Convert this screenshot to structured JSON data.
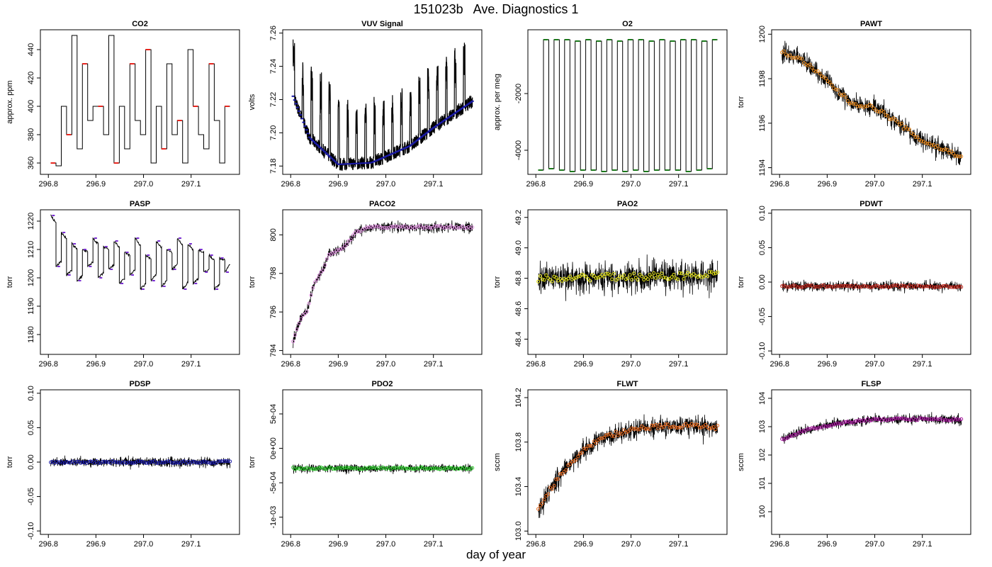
{
  "page": {
    "title": "151023b   Ave. Diagnostics 1",
    "x_caption": "day of year"
  },
  "chart_data": [
    {
      "type": "line",
      "title": "CO2",
      "ylabel": "approx. ppm",
      "xlim": [
        296.8,
        297.185
      ],
      "ylim": [
        352,
        454
      ],
      "xticks": [
        296.8,
        296.9,
        297.0,
        297.1
      ],
      "xtick_labels": [
        "296.8",
        "296.9",
        "297.0",
        "297.1"
      ],
      "yticks": [
        360,
        380,
        400,
        420,
        440
      ],
      "ytick_labels": [
        "360",
        "380",
        "400",
        "420",
        "440"
      ],
      "pattern": "step",
      "levels": [
        360,
        358,
        400,
        380,
        450,
        370,
        430,
        390,
        400,
        400,
        380,
        450,
        360,
        400,
        370,
        430,
        390,
        380,
        440,
        360,
        400,
        370,
        430,
        380,
        390,
        360,
        440,
        400,
        380,
        370,
        430,
        390,
        360,
        400
      ],
      "band": 0.6,
      "points": 0,
      "point_color": "#e8261f",
      "point_every": 3
    },
    {
      "type": "line",
      "title": "VUV Signal",
      "ylabel": "volts",
      "xlim": [
        296.8,
        297.185
      ],
      "ylim": [
        7.175,
        7.262
      ],
      "xticks": [
        296.8,
        296.9,
        297.0,
        297.1
      ],
      "xtick_labels": [
        "296.8",
        "296.9",
        "297.0",
        "297.1"
      ],
      "yticks": [
        7.18,
        7.2,
        7.22,
        7.24,
        7.26
      ],
      "ytick_labels": [
        "7.18",
        "7.20",
        "7.22",
        "7.24",
        "7.26"
      ],
      "pattern": "spikes",
      "baseline": [
        [
          296.805,
          7.222
        ],
        [
          296.84,
          7.197
        ],
        [
          296.9,
          7.181
        ],
        [
          296.97,
          7.182
        ],
        [
          297.05,
          7.192
        ],
        [
          297.1,
          7.203
        ],
        [
          297.182,
          7.219
        ]
      ],
      "spike_tops": [
        7.258,
        7.245,
        7.24,
        7.237,
        7.232,
        7.222,
        7.22,
        7.222,
        7.218,
        7.222,
        7.222,
        7.225,
        7.23,
        7.233,
        7.237,
        7.24,
        7.245,
        7.25,
        7.252,
        7.255
      ],
      "band": 0.004,
      "points": 0,
      "point_color": "#1a1aa6",
      "point_every": 1
    },
    {
      "type": "line",
      "title": "O2",
      "ylabel": "approx. per meg",
      "xlim": [
        296.8,
        297.185
      ],
      "ylim": [
        -4850,
        250
      ],
      "xticks": [
        296.8,
        296.9,
        297.0,
        297.1
      ],
      "xtick_labels": [
        "296.8",
        "296.9",
        "297.0",
        "297.1"
      ],
      "yticks": [
        -4000,
        -2000
      ],
      "ytick_labels": [
        "-4000",
        "-2000"
      ],
      "pattern": "square",
      "levels": [
        -4700,
        -100,
        -4650,
        -100,
        -4700,
        -100,
        -4750,
        -150,
        -4700,
        -100,
        -4700,
        -150,
        -4750,
        -100,
        -4700,
        -150,
        -4750,
        -100,
        -4700,
        -100,
        -4750,
        -150,
        -4700,
        -100,
        -4700,
        -150,
        -4700,
        -100,
        -4750,
        -100,
        -4700,
        -150,
        -4650,
        -100
      ],
      "band": 10,
      "points": 0,
      "point_color": "#1b7a1b",
      "point_every": 1
    },
    {
      "type": "line",
      "title": "PAWT",
      "ylabel": "torr",
      "xlim": [
        296.8,
        297.185
      ],
      "ylim": [
        1193.7,
        1200.2
      ],
      "xticks": [
        296.8,
        296.9,
        297.0,
        297.1
      ],
      "xtick_labels": [
        "296.8",
        "296.9",
        "297.0",
        "297.1"
      ],
      "yticks": [
        1194,
        1196,
        1198,
        1200
      ],
      "ytick_labels": [
        "1194",
        "1196",
        "1198",
        "1200"
      ],
      "pattern": "noisy",
      "trend": [
        [
          296.805,
          1199.2
        ],
        [
          296.85,
          1198.8
        ],
        [
          296.9,
          1197.9
        ],
        [
          296.95,
          1196.9
        ],
        [
          297.0,
          1196.7
        ],
        [
          297.05,
          1196.0
        ],
        [
          297.1,
          1195.2
        ],
        [
          297.182,
          1194.5
        ]
      ],
      "band": 0.55,
      "points": 1,
      "point_color": "#ea8a1e",
      "point_every": 1
    },
    {
      "type": "line",
      "title": "PASP",
      "ylabel": "torr",
      "xlim": [
        296.8,
        297.185
      ],
      "ylim": [
        1173,
        1224
      ],
      "xticks": [
        296.8,
        296.9,
        297.0,
        297.1
      ],
      "xtick_labels": [
        "296.8",
        "296.9",
        "297.0",
        "297.1"
      ],
      "yticks": [
        1180,
        1190,
        1200,
        1210,
        1220
      ],
      "ytick_labels": [
        "1180",
        "1190",
        "1200",
        "1210",
        "1220"
      ],
      "pattern": "sawtooth",
      "levels": [
        1222,
        1204,
        1216,
        1201,
        1212,
        1199,
        1210,
        1204,
        1214,
        1200,
        1211,
        1203,
        1213,
        1198,
        1209,
        1201,
        1214,
        1196,
        1208,
        1199,
        1213,
        1197,
        1210,
        1203,
        1214,
        1196,
        1212,
        1198,
        1210,
        1202,
        1208,
        1196,
        1207,
        1202
      ],
      "band": 0.4,
      "points": 0,
      "point_color": "#7a2fd1",
      "point_every": 1
    },
    {
      "type": "line",
      "title": "PACO2",
      "ylabel": "torr",
      "xlim": [
        296.8,
        297.185
      ],
      "ylim": [
        793.8,
        801.3
      ],
      "xticks": [
        296.8,
        296.9,
        297.0,
        297.1
      ],
      "xtick_labels": [
        "296.8",
        "296.9",
        "297.0",
        "297.1"
      ],
      "yticks": [
        794,
        796,
        798,
        800
      ],
      "ytick_labels": [
        "794",
        "796",
        "798",
        "800"
      ],
      "pattern": "noisy",
      "trend": [
        [
          296.805,
          794.5
        ],
        [
          296.82,
          795.6
        ],
        [
          296.835,
          796.1
        ],
        [
          296.85,
          797.5
        ],
        [
          296.87,
          798.3
        ],
        [
          296.88,
          799.0
        ],
        [
          296.91,
          799.3
        ],
        [
          296.94,
          800.2
        ],
        [
          296.97,
          800.4
        ],
        [
          297.182,
          800.4
        ]
      ],
      "band": 0.35,
      "points": 1,
      "point_color": "#d98ad9",
      "point_every": 1
    },
    {
      "type": "line",
      "title": "PAO2",
      "ylabel": "torr",
      "xlim": [
        296.8,
        297.185
      ],
      "ylim": [
        48.3,
        49.25
      ],
      "xticks": [
        296.8,
        296.9,
        297.0,
        297.1
      ],
      "xtick_labels": [
        "296.8",
        "296.9",
        "297.0",
        "297.1"
      ],
      "yticks": [
        48.4,
        48.6,
        48.8,
        49.0,
        49.2
      ],
      "ytick_labels": [
        "48.4",
        "48.6",
        "48.8",
        "49.0",
        "49.2"
      ],
      "pattern": "noisy",
      "trend": [
        [
          296.805,
          48.8
        ],
        [
          297.182,
          48.82
        ]
      ],
      "band": 0.13,
      "points": 1,
      "point_color": "#e6e619",
      "point_every": 1
    },
    {
      "type": "line",
      "title": "PDWT",
      "ylabel": "torr",
      "xlim": [
        296.8,
        297.185
      ],
      "ylim": [
        -0.105,
        0.105
      ],
      "xticks": [
        296.8,
        296.9,
        297.0,
        297.1
      ],
      "xtick_labels": [
        "296.8",
        "296.9",
        "297.0",
        "297.1"
      ],
      "yticks": [
        -0.1,
        -0.05,
        0,
        0.05,
        0.1
      ],
      "ytick_labels": [
        "-0.10",
        "-0.05",
        "0.00",
        "0.05",
        "0.10"
      ],
      "pattern": "noisy",
      "trend": [
        [
          296.805,
          -0.006
        ],
        [
          297.182,
          -0.006
        ]
      ],
      "band": 0.009,
      "points": 1,
      "point_color": "#c0281e",
      "point_every": 1
    },
    {
      "type": "line",
      "title": "PDSP",
      "ylabel": "torr",
      "xlim": [
        296.8,
        297.185
      ],
      "ylim": [
        -0.105,
        0.105
      ],
      "xticks": [
        296.8,
        296.9,
        297.0,
        297.1
      ],
      "xtick_labels": [
        "296.8",
        "296.9",
        "297.0",
        "297.1"
      ],
      "yticks": [
        -0.1,
        -0.05,
        0,
        0.05,
        0.1
      ],
      "ytick_labels": [
        "-0.10",
        "-0.05",
        "0.00",
        "0.05",
        "0.10"
      ],
      "pattern": "noisy",
      "trend": [
        [
          296.805,
          0.0
        ],
        [
          297.182,
          0.0
        ]
      ],
      "band": 0.009,
      "points": 1,
      "point_color": "#1a1aa6",
      "point_every": 1
    },
    {
      "type": "line",
      "title": "PDO2",
      "ylabel": "torr",
      "xlim": [
        296.8,
        297.185
      ],
      "ylim": [
        -0.00125,
        0.00085
      ],
      "xticks": [
        296.8,
        296.9,
        297.0,
        297.1
      ],
      "xtick_labels": [
        "296.8",
        "296.9",
        "297.0",
        "297.1"
      ],
      "yticks": [
        -0.001,
        -0.0005,
        0,
        0.0005
      ],
      "ytick_labels": [
        "-1e-03",
        "-5e-04",
        "0e+00",
        "5e-04"
      ],
      "pattern": "noisy",
      "trend": [
        [
          296.805,
          -0.00029
        ],
        [
          297.182,
          -0.00029
        ]
      ],
      "band": 8e-05,
      "points": 1,
      "point_color": "#2fd12f",
      "point_every": 1
    },
    {
      "type": "line",
      "title": "FLWT",
      "ylabel": "sccm",
      "xlim": [
        296.8,
        297.185
      ],
      "ylim": [
        102.97,
        104.27
      ],
      "xticks": [
        296.8,
        296.9,
        297.0,
        297.1
      ],
      "xtick_labels": [
        "296.8",
        "296.9",
        "297.0",
        "297.1"
      ],
      "yticks": [
        103.0,
        103.4,
        103.8,
        104.2
      ],
      "ytick_labels": [
        "103.0",
        "103.4",
        "103.8",
        "104.2"
      ],
      "pattern": "noisy",
      "trend": [
        [
          296.805,
          103.2
        ],
        [
          296.83,
          103.37
        ],
        [
          296.86,
          103.55
        ],
        [
          296.9,
          103.72
        ],
        [
          296.94,
          103.84
        ],
        [
          296.98,
          103.89
        ],
        [
          297.03,
          103.93
        ],
        [
          297.1,
          103.95
        ],
        [
          297.182,
          103.93
        ]
      ],
      "band": 0.12,
      "points": 1,
      "point_color": "#ea6a1e",
      "point_every": 1
    },
    {
      "type": "line",
      "title": "FLSP",
      "ylabel": "sccm",
      "xlim": [
        296.8,
        297.185
      ],
      "ylim": [
        99.2,
        104.3
      ],
      "xticks": [
        296.8,
        296.9,
        297.0,
        297.1
      ],
      "xtick_labels": [
        "296.8",
        "296.9",
        "297.0",
        "297.1"
      ],
      "yticks": [
        100,
        101,
        102,
        103,
        104
      ],
      "ytick_labels": [
        "100",
        "101",
        "102",
        "103",
        "104"
      ],
      "pattern": "noisy",
      "trend": [
        [
          296.805,
          102.55
        ],
        [
          296.85,
          102.85
        ],
        [
          296.9,
          103.05
        ],
        [
          296.95,
          103.18
        ],
        [
          297.0,
          103.25
        ],
        [
          297.1,
          103.27
        ],
        [
          297.182,
          103.25
        ]
      ],
      "band": 0.22,
      "points": 1,
      "point_color": "#a6199e",
      "point_every": 1
    }
  ]
}
